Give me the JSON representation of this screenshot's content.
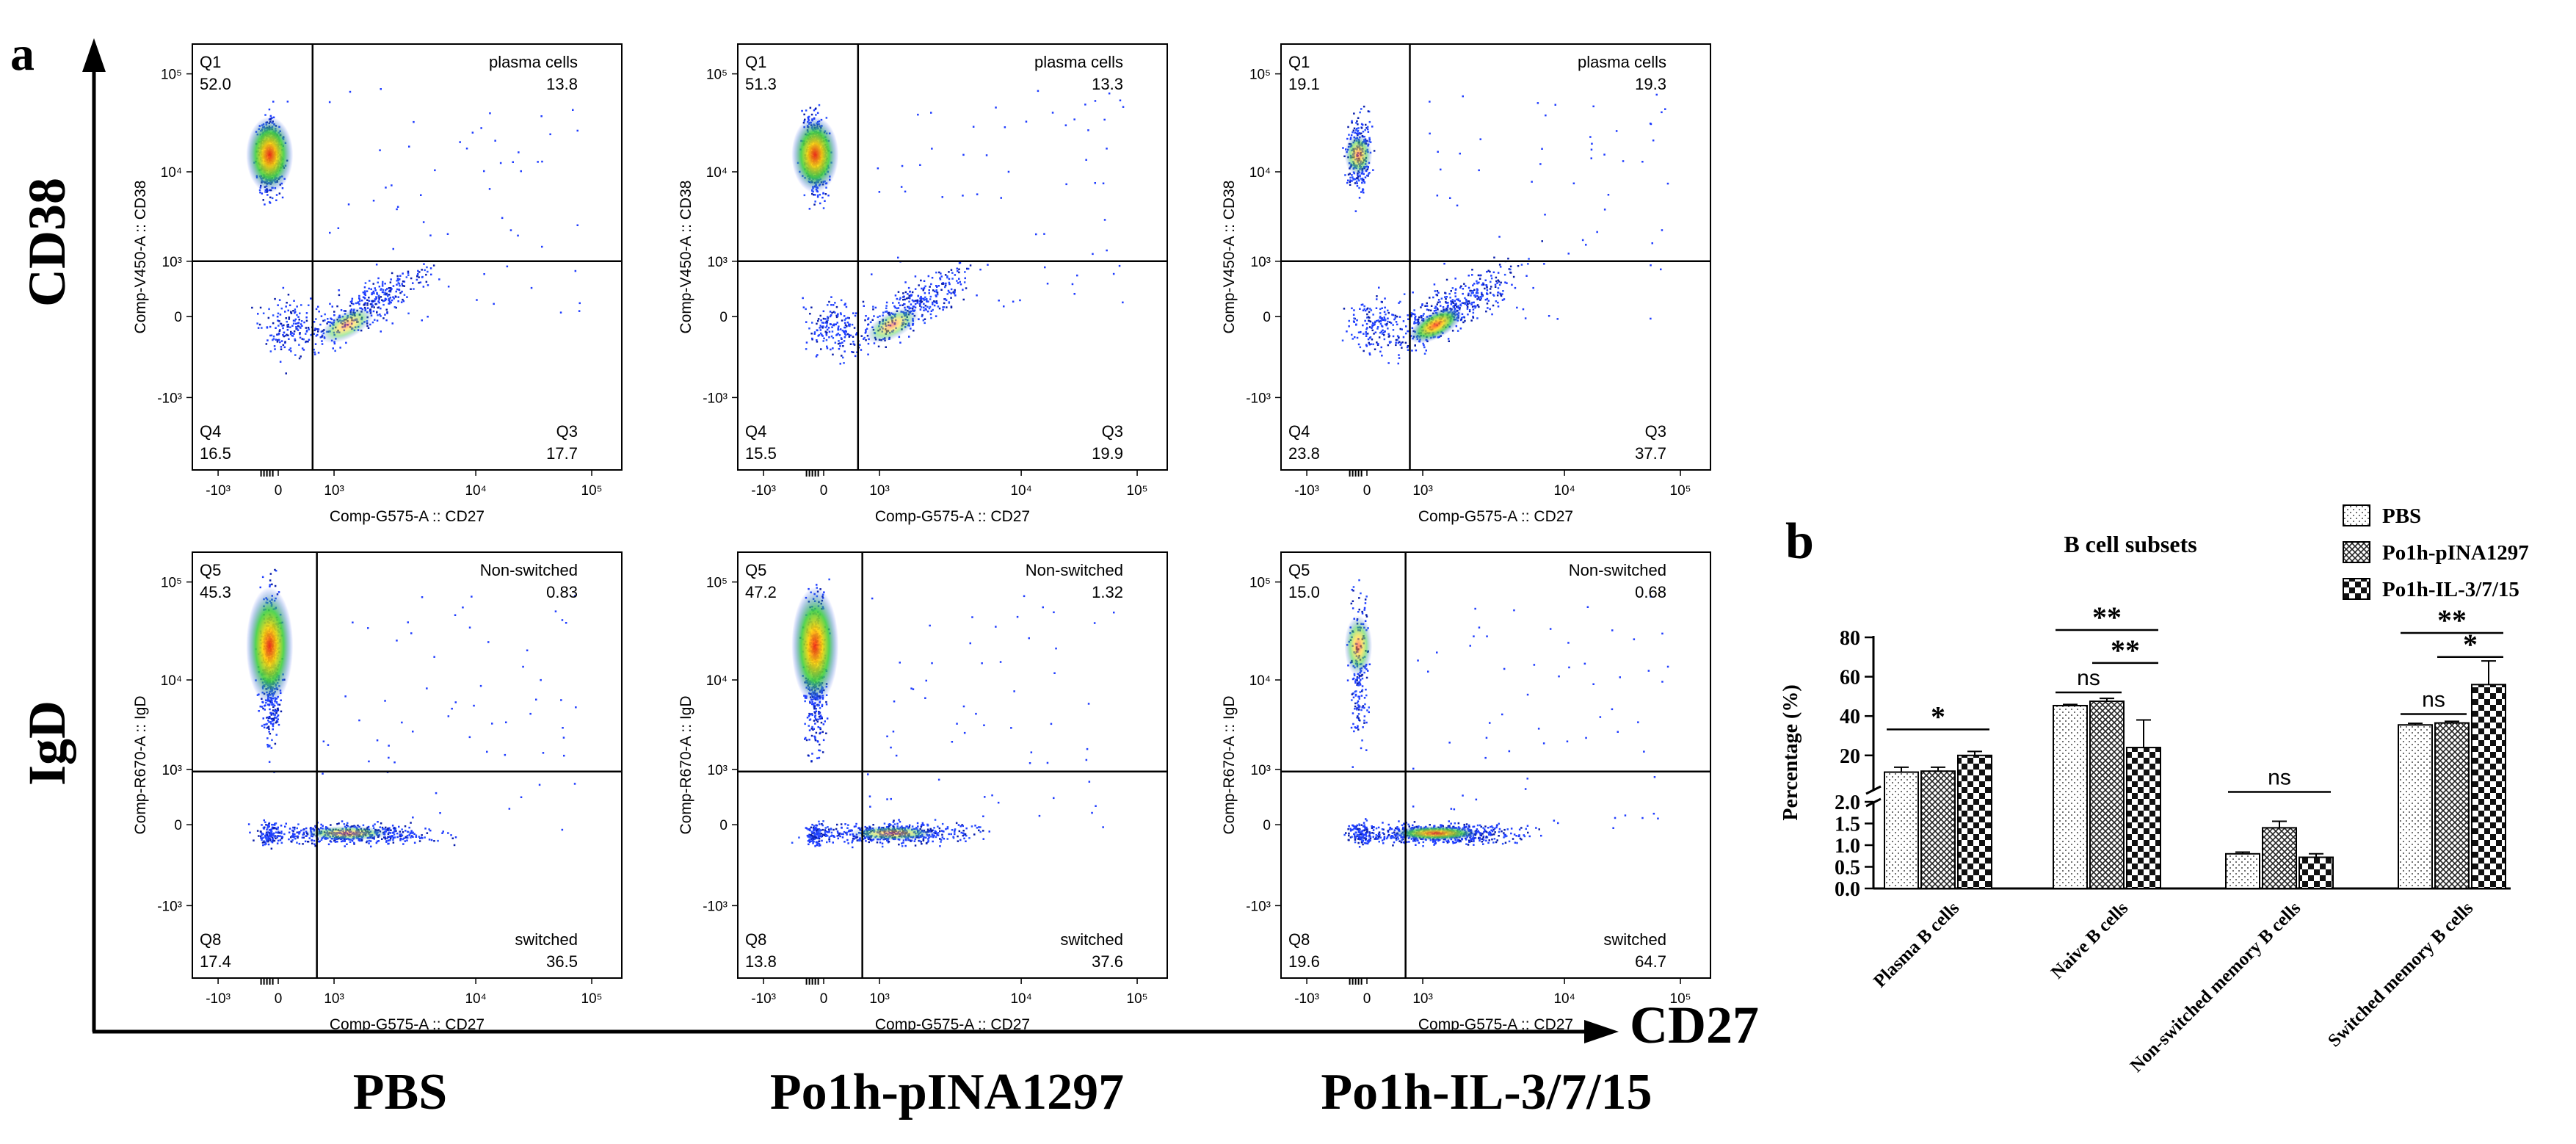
{
  "panel_a": {
    "label": "a",
    "y_marker_top": "CD38",
    "y_marker_bottom": "IgD",
    "x_marker": "CD27",
    "groups": [
      "PBS",
      "Po1h-pINA1297",
      "Po1h-IL-3/7/15"
    ],
    "axis": {
      "x_label": "Comp-G575-A :: CD27",
      "y_label_top": "Comp-V450-A :: CD38",
      "y_label_bottom": "Comp-R670-A :: IgD",
      "x_ticks": [
        "-10³",
        "0",
        "10³",
        "10⁴",
        "10⁵"
      ],
      "y_ticks": [
        "10⁵",
        "10⁴",
        "10³",
        "0",
        "-10³"
      ]
    },
    "top_row": [
      {
        "q1_label": "Q1",
        "q1": "52.0",
        "plasma_label": "plasma cells",
        "plasma": "13.8",
        "q4_label": "Q4",
        "q4": "16.5",
        "q3_label": "Q3",
        "q3": "17.7"
      },
      {
        "q1_label": "Q1",
        "q1": "51.3",
        "plasma_label": "plasma cells",
        "plasma": "13.3",
        "q4_label": "Q4",
        "q4": "15.5",
        "q3_label": "Q3",
        "q3": "19.9"
      },
      {
        "q1_label": "Q1",
        "q1": "19.1",
        "plasma_label": "plasma cells",
        "plasma": "19.3",
        "q4_label": "Q4",
        "q4": "23.8",
        "q3_label": "Q3",
        "q3": "37.7"
      }
    ],
    "bottom_row": [
      {
        "q5_label": "Q5",
        "q5": "45.3",
        "ns_label": "Non-switched",
        "ns": "0.83",
        "q8_label": "Q8",
        "q8": "17.4",
        "sw_label": "switched",
        "sw": "36.5"
      },
      {
        "q5_label": "Q5",
        "q5": "47.2",
        "ns_label": "Non-switched",
        "ns": "1.32",
        "q8_label": "Q8",
        "q8": "13.8",
        "sw_label": "switched",
        "sw": "37.6"
      },
      {
        "q5_label": "Q5",
        "q5": "15.0",
        "ns_label": "Non-switched",
        "ns": "0.68",
        "q8_label": "Q8",
        "q8": "19.6",
        "sw_label": "switched",
        "sw": "64.7"
      }
    ]
  },
  "chart_data": {
    "type": "bar",
    "panel_label": "b",
    "title": "B cell subsets",
    "ylabel": "Percentage (%)",
    "xlabel": "",
    "categories": [
      "Plasma B cells",
      "Naive B cells",
      "Non-switched memory B cells",
      "Switched memory B cells"
    ],
    "series": [
      {
        "name": "PBS",
        "values": [
          11.5,
          45.3,
          0.8,
          35.5
        ],
        "errors": [
          2.5,
          0.6,
          0.04,
          0.8
        ]
      },
      {
        "name": "Po1h-pINA1297",
        "values": [
          12.0,
          47.5,
          1.4,
          36.5
        ],
        "errors": [
          2.0,
          1.5,
          0.15,
          0.8
        ]
      },
      {
        "name": "Po1h-IL-3/7/15",
        "values": [
          20.0,
          24.0,
          0.72,
          56.0
        ],
        "errors": [
          2.0,
          14.0,
          0.08,
          12.0
        ]
      }
    ],
    "y_break": {
      "lower_range": [
        0,
        2.0
      ],
      "upper_range": [
        2.0,
        80
      ]
    },
    "y_ticks_lower": [
      "0.0",
      "0.5",
      "1.0",
      "1.5",
      "2.0"
    ],
    "y_ticks_upper": [
      "20",
      "40",
      "60",
      "80"
    ],
    "significance": [
      {
        "category": "Plasma B cells",
        "pair": "PBS vs Po1h-IL-3/7/15",
        "label": "*"
      },
      {
        "category": "Naive B cells",
        "pair": "PBS vs Po1h-pINA1297",
        "label": "ns"
      },
      {
        "category": "Naive B cells",
        "pair": "PBS vs Po1h-IL-3/7/15",
        "label": "**"
      },
      {
        "category": "Naive B cells",
        "pair": "Po1h-pINA1297 vs Po1h-IL-3/7/15",
        "label": "**"
      },
      {
        "category": "Non-switched memory B cells",
        "pair": "PBS vs Po1h-IL-3/7/15",
        "label": "ns"
      },
      {
        "category": "Switched memory B cells",
        "pair": "PBS vs Po1h-pINA1297",
        "label": "ns"
      },
      {
        "category": "Switched memory B cells",
        "pair": "PBS vs Po1h-IL-3/7/15",
        "label": "**"
      },
      {
        "category": "Switched memory B cells",
        "pair": "Po1h-pINA1297 vs Po1h-IL-3/7/15",
        "label": "*"
      }
    ],
    "legend_position": "top-right",
    "colors": {
      "bar_stroke": "#000000",
      "background": "#ffffff"
    }
  }
}
